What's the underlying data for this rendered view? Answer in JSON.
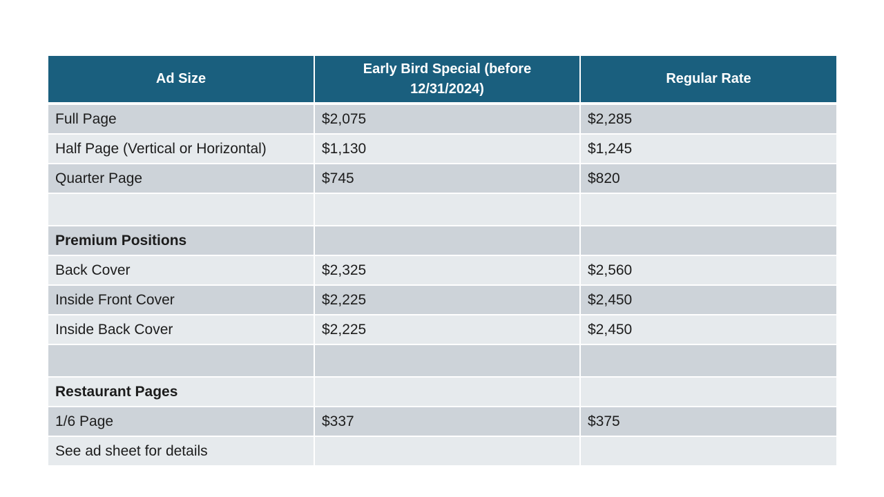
{
  "colors": {
    "header_bg": "#1A5F7E",
    "header_text": "#FFFFFF",
    "row_dark": "#CDD3D9",
    "row_light": "#E6EAED",
    "body_text": "#1C1C1C"
  },
  "table": {
    "columns": [
      {
        "label": "Ad Size"
      },
      {
        "label": "Early Bird Special (before 12/31/2024)"
      },
      {
        "label": "Regular Rate"
      }
    ],
    "rows": [
      {
        "type": "item",
        "ad_size": "Full Page",
        "early_bird": "$2,075",
        "regular_rate": "$2,285"
      },
      {
        "type": "item",
        "ad_size": "Half Page (Vertical or Horizontal)",
        "early_bird": "$1,130",
        "regular_rate": "$1,245"
      },
      {
        "type": "item",
        "ad_size": "Quarter Page",
        "early_bird": "$745",
        "regular_rate": "$820"
      },
      {
        "type": "spacer",
        "ad_size": "",
        "early_bird": "",
        "regular_rate": ""
      },
      {
        "type": "section",
        "ad_size": "Premium Positions",
        "early_bird": "",
        "regular_rate": ""
      },
      {
        "type": "item",
        "ad_size": "Back Cover",
        "early_bird": "$2,325",
        "regular_rate": "$2,560"
      },
      {
        "type": "item",
        "ad_size": "Inside Front Cover",
        "early_bird": "$2,225",
        "regular_rate": "$2,450"
      },
      {
        "type": "item",
        "ad_size": "Inside Back Cover",
        "early_bird": "$2,225",
        "regular_rate": "$2,450"
      },
      {
        "type": "spacer",
        "ad_size": "",
        "early_bird": "",
        "regular_rate": ""
      },
      {
        "type": "section",
        "ad_size": "Restaurant Pages",
        "early_bird": "",
        "regular_rate": ""
      },
      {
        "type": "item",
        "ad_size": "1/6 Page",
        "early_bird": "$337",
        "regular_rate": "$375"
      },
      {
        "type": "note",
        "ad_size": "See ad sheet for details",
        "early_bird": "",
        "regular_rate": ""
      }
    ]
  }
}
